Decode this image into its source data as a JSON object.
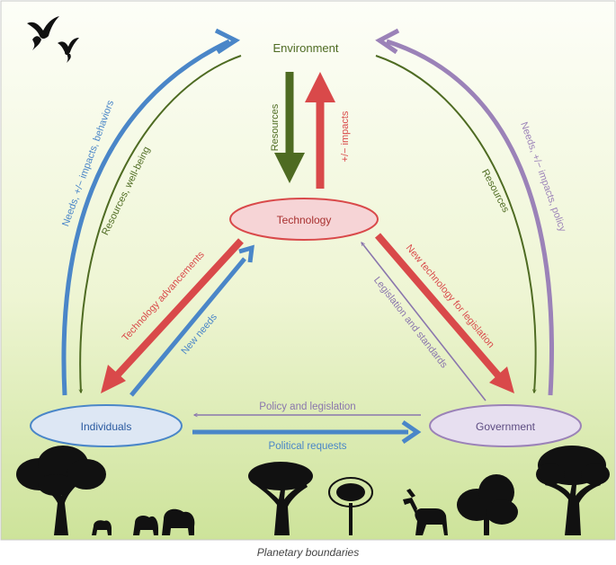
{
  "nodes": {
    "environment": "Environment",
    "technology": "Technology",
    "individuals": "Individuals",
    "government": "Government"
  },
  "flows": {
    "resources_down": "Resources",
    "impacts_up": "+/− impacts",
    "needs_impacts_behaviors": "Needs, +/− impacts, behaviors",
    "resources_wellbeing": "Resources, well-being",
    "resources_right": "Resources",
    "needs_impacts_policy": "Needs, +/− impacts, policy",
    "technology_advancements": "Technology advancements",
    "new_needs": "New needs",
    "new_technology_for_legislation": "New technology for legislation",
    "legislation_and_standards": "Legislation and standards",
    "policy_and_legislation": "Policy and legislation",
    "political_requests": "Political requests"
  },
  "caption": "Planetary boundaries",
  "colors": {
    "green": "#4e6b22",
    "red": "#d9494a",
    "blue": "#4a86c8",
    "purple": "#9b82b8",
    "bg_top": "#fbfdf3",
    "bg_bottom": "#cfe49b"
  }
}
